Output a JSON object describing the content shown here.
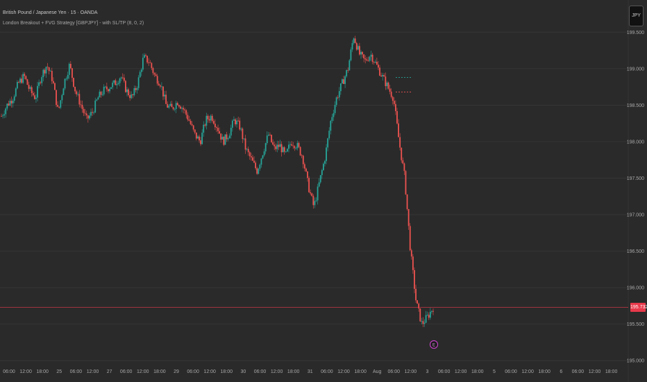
{
  "header": {
    "title": "British Pound / Japanese Yen · 15 · OANDA",
    "indicator": "London Breakout + FVG Strategy [GBPJPY] - with SL/TP (8, 0, 2)"
  },
  "currency_button": "JPY",
  "last_price_label": "195.732",
  "event_marker": "E",
  "colors": {
    "up": "#26a69a",
    "down": "#ef5350",
    "grid": "#3a3a3a",
    "price_line": "#e8394a",
    "background": "#2a2a2a"
  },
  "chart_data": {
    "type": "candlestick",
    "ylim": [
      194.85,
      199.75
    ],
    "y_ticks": [
      "199.500",
      "199.000",
      "198.500",
      "198.000",
      "197.500",
      "197.000",
      "196.500",
      "196.000",
      "195.500",
      "195.000"
    ],
    "x_ticks": [
      "06:00",
      "12:00",
      "18:00",
      "25",
      "06:00",
      "12:00",
      "27",
      "06:00",
      "12:00",
      "18:00",
      "29",
      "06:00",
      "12:00",
      "18:00",
      "30",
      "06:00",
      "12:00",
      "18:00",
      "31",
      "06:00",
      "12:00",
      "18:00",
      "Aug",
      "06:00",
      "12:00",
      "3",
      "06:00",
      "12:00",
      "18:00",
      "5",
      "06:00",
      "12:00",
      "18:00",
      "6",
      "06:00",
      "12:00",
      "18:00"
    ],
    "last_price": 195.732,
    "close_path": [
      198.35,
      198.5,
      198.6,
      198.8,
      198.9,
      198.7,
      198.6,
      198.9,
      199.05,
      198.85,
      198.4,
      198.8,
      199.05,
      198.7,
      198.5,
      198.3,
      198.4,
      198.6,
      198.7,
      198.75,
      198.8,
      198.9,
      198.7,
      198.6,
      198.8,
      199.15,
      199.1,
      198.9,
      198.8,
      198.5,
      198.45,
      198.55,
      198.45,
      198.3,
      198.1,
      198.0,
      198.3,
      198.35,
      198.2,
      198.0,
      198.1,
      198.3,
      198.2,
      197.9,
      197.75,
      197.6,
      197.85,
      198.1,
      197.9,
      197.95,
      197.8,
      198.0,
      197.95,
      197.8,
      197.4,
      197.1,
      197.45,
      197.8,
      198.3,
      198.6,
      198.8,
      199.0,
      199.45,
      199.2,
      199.1,
      199.2,
      199.05,
      198.9,
      198.75,
      198.6,
      198.0,
      197.5,
      196.5,
      195.8,
      195.5,
      195.6,
      195.73
    ],
    "dashed_levels": [
      198.88,
      198.68
    ],
    "current_price_line": 195.732
  }
}
